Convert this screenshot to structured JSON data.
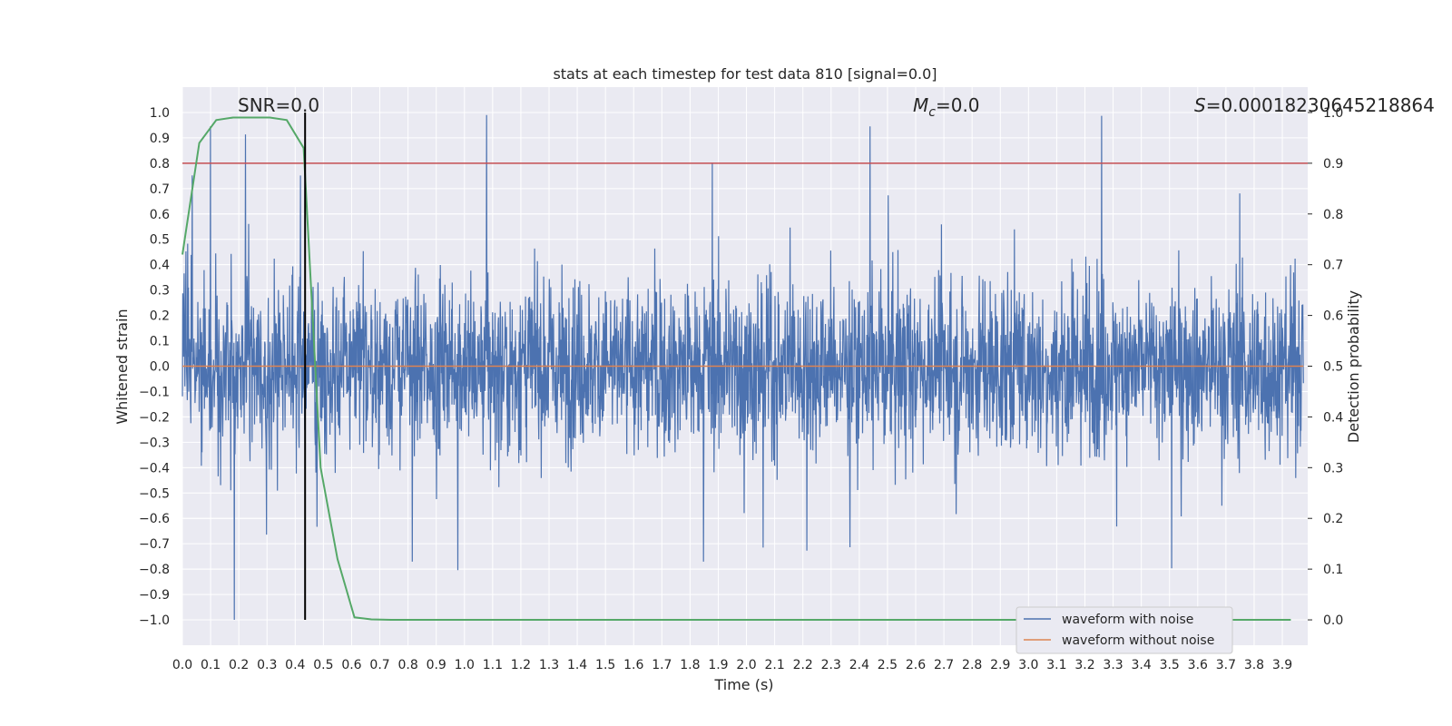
{
  "chart_data": {
    "type": "line",
    "title": "stats at each timestep for test data 810 [signal=0.0]",
    "xlabel": "Time (s)",
    "ylabel": "Whitened strain",
    "y2label": "Detection probability",
    "xlim": [
      0.0,
      3.99
    ],
    "ylim": [
      -1.1,
      1.1
    ],
    "y2lim": [
      -0.05,
      1.05
    ],
    "x_ticks": [
      "0.0",
      "0.1",
      "0.2",
      "0.3",
      "0.4",
      "0.5",
      "0.6",
      "0.7",
      "0.8",
      "0.9",
      "1.0",
      "1.1",
      "1.2",
      "1.3",
      "1.4",
      "1.5",
      "1.6",
      "1.7",
      "1.8",
      "1.9",
      "2.0",
      "2.1",
      "2.2",
      "2.3",
      "2.4",
      "2.5",
      "2.6",
      "2.7",
      "2.8",
      "2.9",
      "3.0",
      "3.1",
      "3.2",
      "3.3",
      "3.4",
      "3.5",
      "3.6",
      "3.7",
      "3.8",
      "3.9"
    ],
    "y_ticks": [
      "1.0",
      "0.9",
      "0.8",
      "0.7",
      "0.6",
      "0.5",
      "0.4",
      "0.3",
      "0.2",
      "0.1",
      "0.0",
      "−0.1",
      "−0.2",
      "−0.3",
      "−0.4",
      "−0.5",
      "−0.6",
      "−0.7",
      "−0.8",
      "−0.9",
      "−1.0"
    ],
    "y2_ticks": [
      "1.0",
      "0.9",
      "0.8",
      "0.7",
      "0.6",
      "0.5",
      "0.4",
      "0.3",
      "0.2",
      "0.1",
      "0.0"
    ],
    "annotations": {
      "snr": "SNR=0.0",
      "mc_symbol": "M",
      "mc_sub": "c",
      "mc_value": "=0.0",
      "s_symbol": "S",
      "s_value": "=0.00018230645218864"
    },
    "series": [
      {
        "name": "waveform with noise",
        "color": "#4c72b0",
        "note": "dense noise, amplitude roughly within [-1.0, 1.0]"
      },
      {
        "name": "waveform without noise",
        "color": "#dd8452",
        "values": "constant 0.0"
      }
    ],
    "detection_probability": {
      "color": "#55a868",
      "x": [
        0.0,
        0.06,
        0.12,
        0.18,
        0.25,
        0.31,
        0.37,
        0.43,
        0.49,
        0.55,
        0.61,
        0.67,
        0.74,
        3.93
      ],
      "y": [
        0.72,
        0.94,
        0.985,
        0.99,
        0.99,
        0.99,
        0.985,
        0.93,
        0.3,
        0.12,
        0.005,
        0.001,
        0.0,
        0.0
      ]
    },
    "threshold_line": {
      "color": "#c44e52",
      "y2": 0.9
    },
    "marker_line": {
      "color": "#000000",
      "x": 0.435,
      "y_range": [
        -1.0,
        1.0
      ]
    },
    "legend_placement": "lower-right",
    "grid": true
  }
}
